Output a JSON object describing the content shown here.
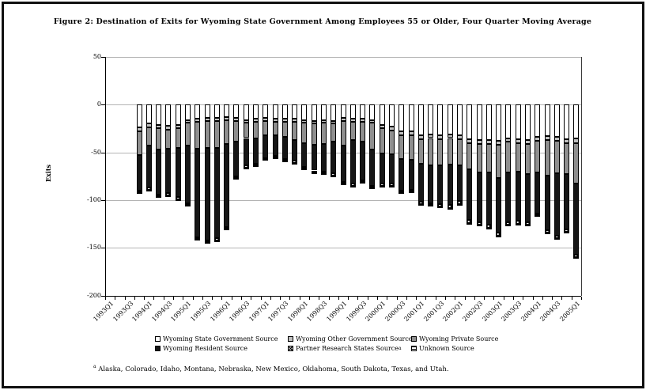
{
  "page": {
    "footnote_marker": "a",
    "footnote_text": "Alaska, Colorado, Idaho, Montana, Nebraska, New Mexico, Oklahoma, South Dakota, Texas, and Utah."
  },
  "chart_data": {
    "type": "bar",
    "stacked": true,
    "orientation": "vertical",
    "values_sign": "negative (bars extend downward from zero)",
    "title": "Figure 2: Destination of Exits for Wyoming State Government Among Employees 55 or Older, Four Quarter Moving Average",
    "xlabel": "",
    "ylabel": "Exits",
    "ylim": [
      -200,
      50
    ],
    "yticks": [
      50,
      0,
      -50,
      -100,
      -150,
      -200
    ],
    "grid": "horizontal",
    "legend_position": "bottom",
    "axis_color": "#000000",
    "gridline_color": "#b4b4b4",
    "x_tick_labels": [
      "1993Q1",
      "1993Q3",
      "1994Q1",
      "1994Q3",
      "1995Q1",
      "1995Q3",
      "1996Q1",
      "1996Q3",
      "1997Q1",
      "1997Q3",
      "1998Q1",
      "1998Q3",
      "1999Q1",
      "1999Q3",
      "2000Q1",
      "2000Q3",
      "2001Q1",
      "2001Q3",
      "2002Q1",
      "2002Q3",
      "2003Q1",
      "2003Q3",
      "2004Q1",
      "2004Q3",
      "2005Q1"
    ],
    "series": [
      {
        "name": "Wyoming State Government Source",
        "fill": "#ffffff",
        "pattern": "solid"
      },
      {
        "name": "Wyoming Other Government Source",
        "fill": "#c0c0c0",
        "pattern": "solid"
      },
      {
        "name": "Wyoming Private Source",
        "fill": "#8f8f8f",
        "pattern": "solid"
      },
      {
        "name": "Wyoming Resident Source",
        "fill": "#161616",
        "pattern": "solid"
      },
      {
        "name": "Partner Research States Source",
        "sup": "a",
        "fill": "#444444",
        "pattern": "crosshatch"
      },
      {
        "name": "Unknown Source",
        "fill": "#ffffff",
        "pattern": "hlines"
      }
    ],
    "bars": [
      {
        "q": "1993Q4",
        "values": [
          24,
          4,
          25,
          37,
          2,
          1
        ]
      },
      {
        "q": "1994Q1",
        "values": [
          20,
          4,
          19,
          44,
          2,
          1
        ]
      },
      {
        "q": "1994Q2",
        "values": [
          21,
          4,
          22,
          47,
          2,
          1
        ]
      },
      {
        "q": "1994Q3",
        "values": [
          22,
          4,
          20,
          47,
          2,
          1
        ]
      },
      {
        "q": "1994Q4",
        "values": [
          21,
          4,
          20,
          52,
          2,
          1
        ]
      },
      {
        "q": "1995Q1",
        "values": [
          16,
          3,
          24,
          60,
          2,
          1
        ]
      },
      {
        "q": "1995Q2",
        "values": [
          15,
          3,
          28,
          93,
          2,
          1
        ]
      },
      {
        "q": "1995Q3",
        "values": [
          14,
          3,
          28,
          97,
          2,
          1
        ]
      },
      {
        "q": "1995Q4",
        "values": [
          14,
          3,
          28,
          95,
          2,
          1
        ]
      },
      {
        "q": "1996Q1",
        "values": [
          13,
          3,
          25,
          87,
          2,
          1
        ]
      },
      {
        "q": "1996Q2",
        "values": [
          14,
          3,
          22,
          36,
          2,
          1
        ]
      },
      {
        "q": "1996Q3",
        "values": [
          16,
          3,
          16,
          29,
          2,
          1
        ]
      },
      {
        "q": "1996Q4",
        "values": [
          15,
          3,
          17,
          27,
          2,
          1
        ]
      },
      {
        "q": "1997Q1",
        "values": [
          14,
          3,
          15,
          24,
          1,
          1
        ]
      },
      {
        "q": "1997Q2",
        "values": [
          15,
          3,
          14,
          22,
          1,
          1
        ]
      },
      {
        "q": "1997Q3",
        "values": [
          15,
          3,
          16,
          23,
          2,
          1
        ]
      },
      {
        "q": "1997Q4",
        "values": [
          15,
          3,
          19,
          22,
          2,
          1
        ]
      },
      {
        "q": "1998Q1",
        "values": [
          16,
          3,
          21,
          25,
          2,
          1
        ]
      },
      {
        "q": "1998Q2",
        "values": [
          17,
          3,
          22,
          27,
          2,
          1
        ]
      },
      {
        "q": "1998Q3",
        "values": [
          16,
          3,
          22,
          29,
          2,
          1
        ]
      },
      {
        "q": "1998Q4",
        "values": [
          17,
          3,
          19,
          33,
          2,
          1
        ]
      },
      {
        "q": "1999Q1",
        "values": [
          14,
          3,
          26,
          38,
          2,
          1
        ]
      },
      {
        "q": "1999Q2",
        "values": [
          15,
          3,
          19,
          46,
          2,
          1
        ]
      },
      {
        "q": "1999Q3",
        "values": [
          15,
          3,
          21,
          40,
          2,
          1
        ]
      },
      {
        "q": "1999Q4",
        "values": [
          16,
          3,
          28,
          38,
          2,
          1
        ]
      },
      {
        "q": "2000Q1",
        "values": [
          21,
          4,
          26,
          32,
          2,
          1
        ]
      },
      {
        "q": "2000Q2",
        "values": [
          23,
          4,
          25,
          31,
          2,
          1
        ]
      },
      {
        "q": "2000Q3",
        "values": [
          28,
          4,
          25,
          33,
          2,
          1
        ]
      },
      {
        "q": "2000Q4",
        "values": [
          28,
          4,
          26,
          31,
          2,
          1
        ]
      },
      {
        "q": "2001Q1",
        "values": [
          32,
          4,
          26,
          40,
          2,
          1
        ]
      },
      {
        "q": "2001Q2",
        "values": [
          31,
          4,
          29,
          39,
          2,
          1
        ]
      },
      {
        "q": "2001Q3",
        "values": [
          32,
          4,
          28,
          40,
          3,
          1
        ]
      },
      {
        "q": "2001Q4",
        "values": [
          31,
          4,
          28,
          42,
          3,
          1
        ]
      },
      {
        "q": "2002Q1",
        "values": [
          32,
          4,
          28,
          37,
          3,
          1
        ]
      },
      {
        "q": "2002Q2",
        "values": [
          36,
          4,
          28,
          53,
          3,
          1
        ]
      },
      {
        "q": "2002Q3",
        "values": [
          37,
          4,
          30,
          52,
          3,
          1
        ]
      },
      {
        "q": "2002Q4",
        "values": [
          37,
          4,
          30,
          55,
          3,
          1
        ]
      },
      {
        "q": "2003Q1",
        "values": [
          38,
          4,
          35,
          57,
          3,
          1
        ]
      },
      {
        "q": "2003Q2",
        "values": [
          35,
          4,
          32,
          52,
          3,
          1
        ]
      },
      {
        "q": "2003Q3",
        "values": [
          36,
          4,
          30,
          52,
          3,
          1
        ]
      },
      {
        "q": "2003Q4",
        "values": [
          37,
          4,
          32,
          50,
          3,
          1
        ]
      },
      {
        "q": "2004Q1",
        "values": [
          34,
          4,
          33,
          43,
          2,
          1
        ]
      },
      {
        "q": "2004Q2",
        "values": [
          33,
          4,
          37,
          58,
          2,
          1
        ]
      },
      {
        "q": "2004Q3",
        "values": [
          34,
          4,
          34,
          65,
          3,
          1
        ]
      },
      {
        "q": "2004Q4",
        "values": [
          36,
          4,
          33,
          58,
          2,
          1
        ]
      },
      {
        "q": "2005Q1",
        "values": [
          35,
          5,
          43,
          74,
          3,
          1
        ]
      }
    ]
  }
}
